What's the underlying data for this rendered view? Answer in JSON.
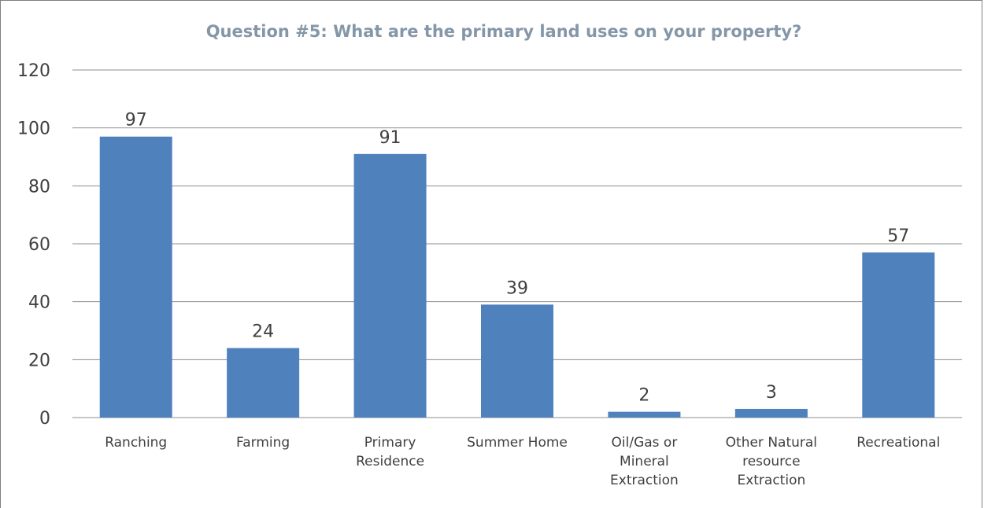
{
  "chart_data": {
    "type": "bar",
    "title": "Question #5: What are the primary land uses on your property?",
    "xlabel": "",
    "ylabel": "",
    "ylim": [
      0,
      120
    ],
    "yticks": [
      0,
      20,
      40,
      60,
      80,
      100,
      120
    ],
    "grid": true,
    "legend": "none",
    "categories": [
      [
        "Ranching"
      ],
      [
        "Farming"
      ],
      [
        "Primary",
        "Residence"
      ],
      [
        "Summer Home"
      ],
      [
        "Oil/Gas or",
        "Mineral",
        "Extraction"
      ],
      [
        "Other Natural",
        "resource",
        "Extraction"
      ],
      [
        "Recreational"
      ]
    ],
    "values": [
      97,
      24,
      91,
      39,
      2,
      3,
      57
    ],
    "bar_color": "#4f81bd"
  }
}
